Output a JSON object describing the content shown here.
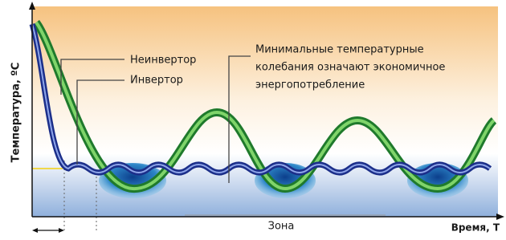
{
  "axes": {
    "y_label": "Температура, ºС",
    "x_label": "Время, Т"
  },
  "labels": {
    "non_inverter": "Неинвертор",
    "inverter": "Инвертор",
    "zone": "Зона"
  },
  "annotation": {
    "lines": [
      "Минимальные температурные",
      "колебания означают экономичное",
      "энергопотребление"
    ]
  }
}
